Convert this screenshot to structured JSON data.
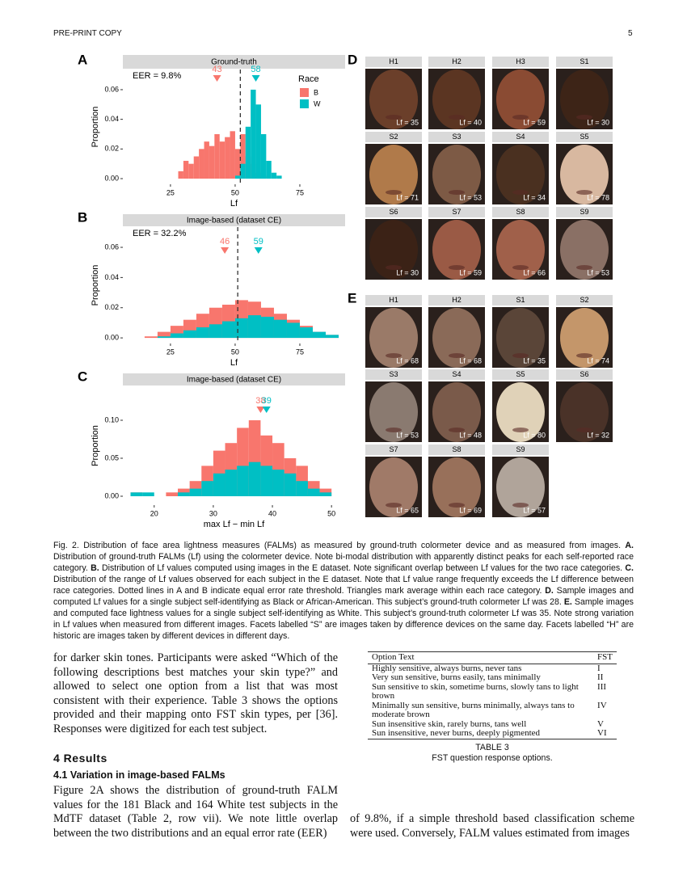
{
  "header": {
    "left": "PRE-PRINT COPY",
    "page": "5"
  },
  "figure": {
    "legend_title": "Race",
    "panels": [
      {
        "letter": "A",
        "strip": "Ground-truth",
        "eer": "EER = 9.8%",
        "ylabel": "Proportion",
        "xlabel": "Lf",
        "xlim": [
          6.6,
          92.5
        ],
        "ylim": [
          -0.0038,
          0.0736
        ],
        "xticks": [
          25,
          50,
          75
        ],
        "yticks": [
          {
            "value": 0,
            "label": "0.00"
          },
          {
            "value": 0.02,
            "label": "0.02"
          },
          {
            "value": 0.04,
            "label": "0.04"
          },
          {
            "value": 0.06,
            "label": "0.06"
          }
        ],
        "bins": [
          28,
          30,
          32,
          34,
          36,
          38,
          40,
          42,
          44,
          46,
          48,
          50,
          52,
          54,
          56,
          58,
          60,
          62,
          64,
          66,
          68
        ],
        "series": [
          {
            "name": "B",
            "color": "#f8766d",
            "values": [
              0.005,
              0.012,
              0.01,
              0.015,
              0.02,
              0.025,
              0.022,
              0.03,
              0.025,
              0.028,
              0.032,
              0.02,
              0.03,
              0.015,
              0.01,
              0.004,
              0.002,
              0,
              0,
              0
            ]
          },
          {
            "name": "W",
            "color": "#00bfc4",
            "values": [
              0,
              0,
              0,
              0,
              0,
              0,
              0,
              0,
              0,
              0,
              0,
              0.002,
              0.01,
              0.035,
              0.06,
              0.05,
              0.03,
              0.012,
              0.004,
              0.002
            ]
          }
        ],
        "threshold": 52,
        "means": [
          43,
          58
        ]
      },
      {
        "letter": "B",
        "strip": "Image-based (dataset CE)",
        "eer": "EER = 32.2%",
        "ylabel": "Proportion",
        "xlabel": "Lf",
        "xlim": [
          6.6,
          92.5
        ],
        "ylim": [
          -0.0037,
          0.0734
        ],
        "xticks": [
          25,
          50,
          75
        ],
        "yticks": [
          {
            "value": 0,
            "label": "0.00"
          },
          {
            "value": 0.02,
            "label": "0.02"
          },
          {
            "value": 0.04,
            "label": "0.04"
          },
          {
            "value": 0.06,
            "label": "0.06"
          }
        ],
        "bins": [
          15,
          20,
          25,
          30,
          35,
          40,
          45,
          50,
          55,
          60,
          65,
          70,
          75,
          80,
          85,
          90
        ],
        "series": [
          {
            "name": "B",
            "color": "#f8766d",
            "values": [
              0.001,
              0.004,
              0.008,
              0.012,
              0.016,
              0.02,
              0.022,
              0.025,
              0.024,
              0.02,
              0.016,
              0.012,
              0.008,
              0.004,
              0.002
            ]
          },
          {
            "name": "W",
            "color": "#00bfc4",
            "values": [
              0,
              0.001,
              0.003,
              0.005,
              0.007,
              0.009,
              0.011,
              0.013,
              0.015,
              0.014,
              0.012,
              0.01,
              0.007,
              0.004,
              0.002
            ]
          }
        ],
        "threshold": 51,
        "means": [
          46,
          59
        ]
      },
      {
        "letter": "C",
        "strip": "Image-based (dataset CE)",
        "ylabel": "Proportion",
        "xlabel": "max Lf − min Lf",
        "xlim": [
          14.7,
          52.3
        ],
        "ylim": [
          -0.0117,
          0.1447
        ],
        "xticks": [
          20,
          30,
          40,
          50
        ],
        "yticks": [
          {
            "value": 0,
            "label": "0.00"
          },
          {
            "value": 0.05,
            "label": "0.05"
          },
          {
            "value": 0.1,
            "label": "0.10"
          }
        ],
        "bins": [
          16,
          18,
          20,
          22,
          24,
          26,
          28,
          30,
          32,
          34,
          36,
          38,
          40,
          42,
          44,
          46,
          48,
          50
        ],
        "series": [
          {
            "name": "B",
            "color": "#f8766d",
            "values": [
              0.005,
              0,
              0,
              0.005,
              0.01,
              0.02,
              0.04,
              0.06,
              0.07,
              0.09,
              0.1,
              0.08,
              0.07,
              0.05,
              0.04,
              0.02,
              0.01
            ]
          },
          {
            "name": "W",
            "color": "#00bfc4",
            "values": [
              0.005,
              0.005,
              0,
              0,
              0.005,
              0.01,
              0.02,
              0.03,
              0.035,
              0.04,
              0.045,
              0.04,
              0.035,
              0.03,
              0.02,
              0.01,
              0.005
            ]
          }
        ],
        "means": [
          38,
          39
        ]
      }
    ],
    "grids": [
      {
        "letter": "D",
        "tiles": [
          {
            "label": "H1",
            "lf": "Lf = 35"
          },
          {
            "label": "H2",
            "lf": "Lf = 40"
          },
          {
            "label": "H3",
            "lf": "Lf = 59"
          },
          {
            "label": "S1",
            "lf": "Lf = 30"
          },
          {
            "label": "S2",
            "lf": "Lf = 71"
          },
          {
            "label": "S3",
            "lf": "Lf = 53"
          },
          {
            "label": "S4",
            "lf": "Lf = 34"
          },
          {
            "label": "S5",
            "lf": "Lf = 78"
          },
          {
            "label": "S6",
            "lf": "Lf = 30"
          },
          {
            "label": "S7",
            "lf": "Lf = 59"
          },
          {
            "label": "S8",
            "lf": "Lf = 66"
          },
          {
            "label": "S9",
            "lf": "Lf = 53"
          }
        ]
      },
      {
        "letter": "E",
        "tiles": [
          {
            "label": "H1",
            "lf": "Lf = 68"
          },
          {
            "label": "H2",
            "lf": "Lf = 68"
          },
          {
            "label": "S1",
            "lf": "Lf = 35"
          },
          {
            "label": "S2",
            "lf": "Lf = 74"
          },
          {
            "label": "S3",
            "lf": "Lf = 53"
          },
          {
            "label": "S4",
            "lf": "Lf = 48"
          },
          {
            "label": "S5",
            "lf": "Lf = 80"
          },
          {
            "label": "S6",
            "lf": "Lf = 32"
          },
          {
            "label": "S7",
            "lf": "Lf = 65"
          },
          {
            "label": "S8",
            "lf": "Lf = 69"
          },
          {
            "label": "S9",
            "lf": "Lf = 57"
          }
        ]
      }
    ],
    "caption": [
      "Fig. 2. Distribution of face area lightness measures (FALMs) as measured by ground-truth colormeter device and as measured from images. ",
      "A.",
      " Distribution of ground-truth FALMs (Lf) using the colormeter device. Note bi-modal distribution with apparently distinct peaks for each self-reported race category. ",
      "B.",
      " Distribution of Lf values computed using images in the E dataset. Note significant overlap between Lf values for the two race categories. ",
      "C.",
      " Distribution of the range of Lf values observed for each subject in the E dataset. Note that Lf value range frequently exceeds the Lf difference between race categories. Dotted lines in A and B indicate equal error rate threshold. Triangles mark average within each race category. ",
      "D.",
      " Sample images and computed Lf values for a single subject self-identifying as Black or African-American. This subject’s ground-truth colormeter Lf was 28. ",
      "E.",
      " Sample images and computed face lightness values for a single subject self-identifying as White. This subject’s ground-truth colormeter Lf was 35. Note strong variation in Lf values when measured from different images. Facets labelled “S” are images taken by difference devices on the same day. Facets labelled “H” are historic are images taken by different devices in different days."
    ]
  },
  "body": {
    "para1": "for darker skin tones. Participants were asked “Which of the following descriptions best matches your skin type?” and allowed to select one option from a list that was most consistent with their experience. Table 3 shows the options provided and their mapping onto FST skin types, per [36]. Responses were digitized for each test subject.",
    "section": "4 Results",
    "subsection": "4.1 Variation in image-based FALMs",
    "para2": "Figure 2A shows the distribution of ground-truth FALM values for the 181 Black and 164 White test subjects in the MdTF dataset (Table 2, row vii). We note little overlap between the two distributions and an equal error rate (EER)",
    "para3": "of 9.8%, if a simple threshold based classification scheme were used. Conversely, FALM values estimated from images"
  },
  "table": {
    "header": [
      "Option Text",
      "FST"
    ],
    "rows": [
      [
        "Highly sensitive, always burns, never tans",
        "I"
      ],
      [
        "Very sun sensitive, burns easily, tans minimally",
        "II"
      ],
      [
        "Sun sensitive to skin, sometime burns, slowly tans to light brown",
        "III"
      ],
      [
        "Minimally sun sensitive, burns minimally, always tans to moderate brown",
        "IV"
      ],
      [
        "Sun insensitive skin, rarely burns, tans well",
        "V"
      ],
      [
        "Sun insensitive, never burns, deeply pigmented",
        "VI"
      ]
    ],
    "label": "TABLE 3",
    "caption": "FST question response options."
  }
}
